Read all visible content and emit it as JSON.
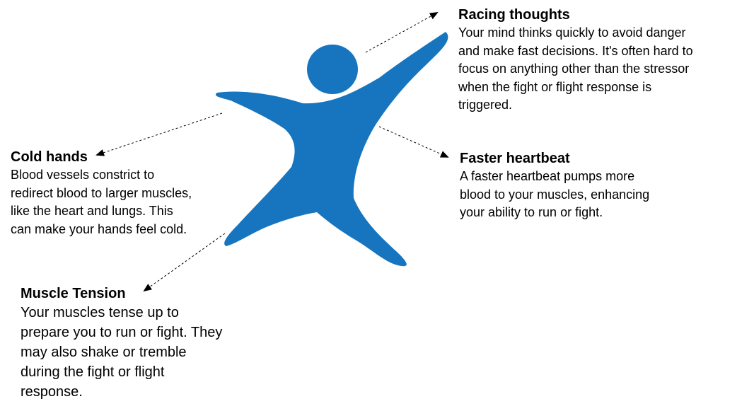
{
  "colors": {
    "figure": "#1675BE",
    "text": "#000000",
    "connector": "#000000"
  },
  "callouts": {
    "racing_thoughts": {
      "title": "Racing thoughts",
      "body": "Your mind thinks quickly to avoid danger\nand make fast decisions. It's often hard to\nfocus on anything other than the stressor\nwhen the fight or flight response is\ntriggered."
    },
    "faster_heartbeat": {
      "title": "Faster heartbeat",
      "body": "A faster heartbeat pumps more\nblood to your muscles, enhancing\nyour ability to run or fight."
    },
    "cold_hands": {
      "title": "Cold hands",
      "body": "Blood vessels constrict to\nredirect blood to larger muscles,\nlike the heart and lungs. This\ncan make your hands feel cold."
    },
    "muscle_tension": {
      "title": "Muscle Tension",
      "body": "Your muscles tense up to\nprepare you to run or fight. They\nmay also shake or tremble\nduring the fight or flight\nresponse."
    }
  }
}
